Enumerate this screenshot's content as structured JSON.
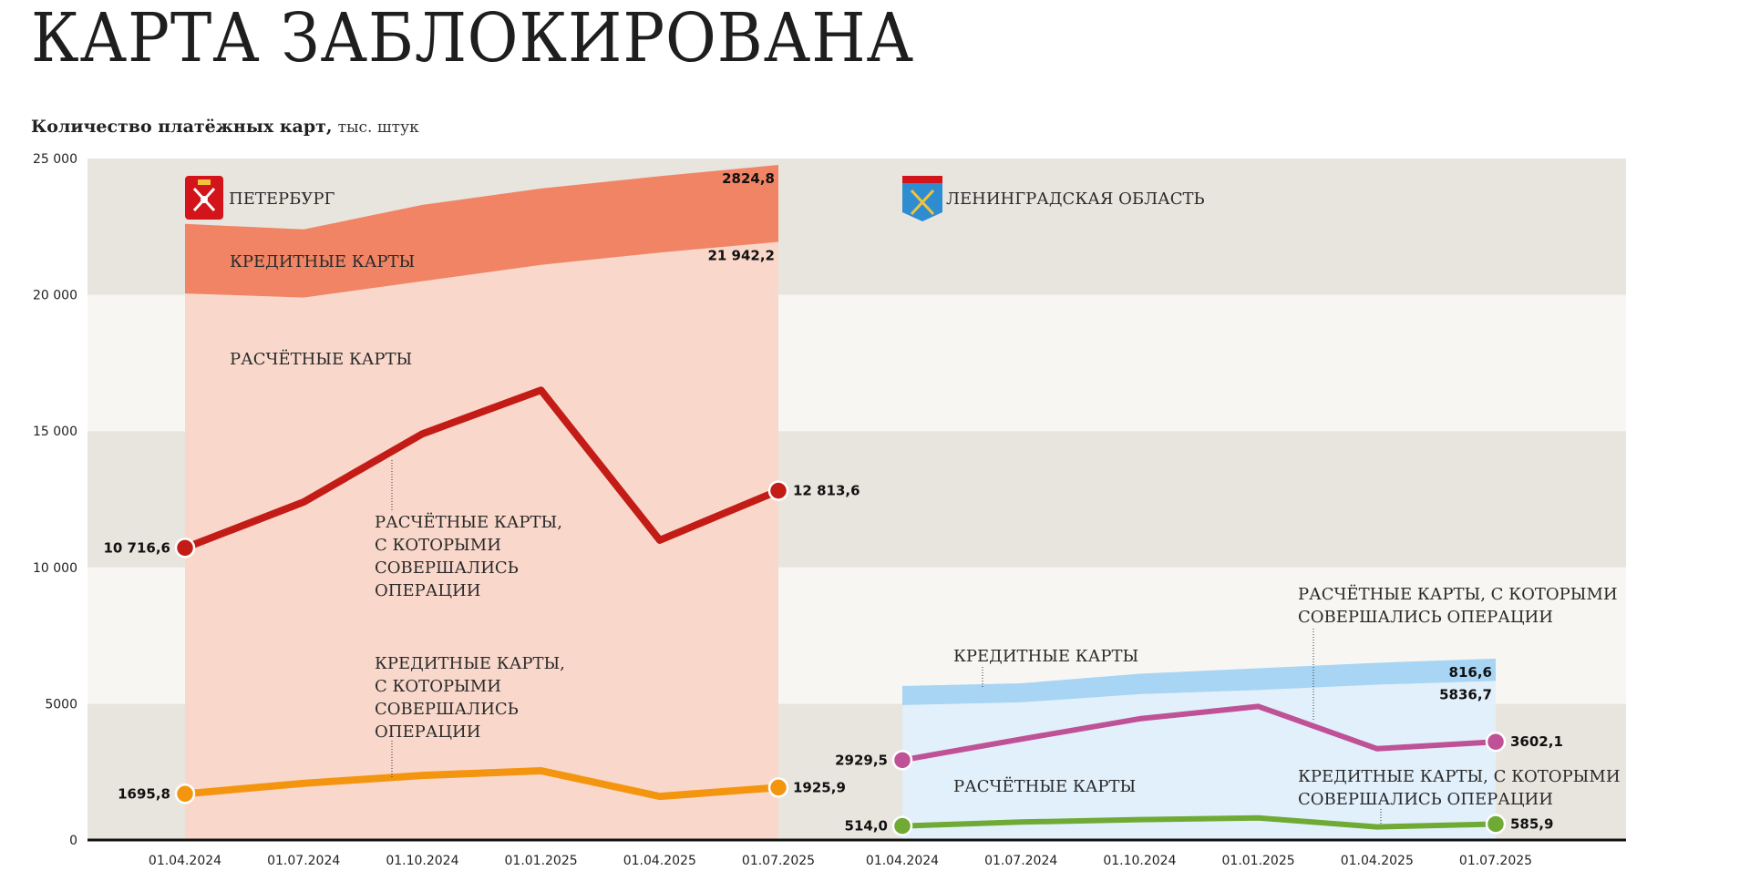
{
  "title": "КАРТА ЗАБЛОКИРОВАНА",
  "subtitle": {
    "bold": "Количество платёжных карт,",
    "unit": "тыс. штук"
  },
  "colors": {
    "band_dark": "#e8e5de",
    "band_light": "#f7f6f3",
    "spb_credit_area": "#f08465",
    "spb_settlement_area": "#f9d8cb",
    "spb_active_settlement_line": "#c31c17",
    "spb_active_credit_line": "#f4950f",
    "lo_credit_area": "#a7d5f3",
    "lo_settlement_area": "#e2f0fb",
    "lo_active_settlement_line": "#bf5197",
    "lo_active_credit_line": "#6eaa34",
    "coat_spb": "#d3141b",
    "coat_lo": "#2e8dd0"
  },
  "chart_data": {
    "type": "area",
    "ylabel": "",
    "ylim": [
      0,
      25000
    ],
    "yticks": [
      0,
      5000,
      10000,
      15000,
      20000,
      25000
    ],
    "ytick_labels": [
      "0",
      "5000",
      "10 000",
      "15 000",
      "20 000",
      "25 000"
    ],
    "grid": "alternating horizontal bands",
    "panels": [
      {
        "region": "ПЕТЕРБУРГ",
        "coat_icon": "spb-coat-of-arms-icon",
        "x": [
          "01.04.2024",
          "01.07.2024",
          "01.10.2024",
          "01.01.2025",
          "01.04.2025",
          "01.07.2025"
        ],
        "series": [
          {
            "key": "settlement",
            "name": "РАСЧЁТНЫЕ КАРТЫ",
            "kind": "area",
            "values": [
              20050,
              19900,
              20500,
              21100,
              21550,
              21942.2
            ],
            "end_label": "21 942,2"
          },
          {
            "key": "credit",
            "name": "КРЕДИТНЫЕ КАРТЫ",
            "kind": "stacked-area",
            "values": [
              2550,
              2500,
              2800,
              2800,
              2800,
              2824.8
            ],
            "end_label": "2824,8"
          },
          {
            "key": "active_settlement",
            "name": "РАСЧЁТНЫЕ КАРТЫ, С КОТОРЫМИ СОВЕРШАЛИСЬ ОПЕРАЦИИ",
            "kind": "line",
            "values": [
              10716.6,
              12400,
              14900,
              16500,
              11000,
              12813.6
            ],
            "start_label": "10 716,6",
            "end_label": "12 813,6"
          },
          {
            "key": "active_credit",
            "name": "КРЕДИТНЫЕ КАРТЫ, С КОТОРЫМИ СОВЕРШАЛИСЬ ОПЕРАЦИИ",
            "kind": "line",
            "values": [
              1695.8,
              2080,
              2370,
              2540,
              1600,
              1925.9
            ],
            "start_label": "1695,8",
            "end_label": "1925,9"
          }
        ],
        "labels": {
          "credit": "КРЕДИТНЫЕ КАРТЫ",
          "settlement": "РАСЧЁТНЫЕ КАРТЫ",
          "active_settlement": [
            "РАСЧЁТНЫЕ КАРТЫ,",
            "С КОТОРЫМИ",
            "СОВЕРШАЛИСЬ",
            "ОПЕРАЦИИ"
          ],
          "active_credit": [
            "КРЕДИТНЫЕ КАРТЫ,",
            "С КОТОРЫМИ",
            "СОВЕРШАЛИСЬ",
            "ОПЕРАЦИИ"
          ]
        }
      },
      {
        "region": "ЛЕНИНГРАДСКАЯ ОБЛАСТЬ",
        "coat_icon": "leningrad-oblast-coat-of-arms-icon",
        "x": [
          "01.04.2024",
          "01.07.2024",
          "01.10.2024",
          "01.01.2025",
          "01.04.2025",
          "01.07.2025"
        ],
        "series": [
          {
            "key": "settlement",
            "name": "РАСЧЁТНЫЕ КАРТЫ",
            "kind": "area",
            "values": [
              4950,
              5050,
              5350,
              5500,
              5700,
              5836.7
            ],
            "end_label": "5836,7"
          },
          {
            "key": "credit",
            "name": "КРЕДИТНЫЕ КАРТЫ",
            "kind": "stacked-area",
            "values": [
              700,
              700,
              750,
              800,
              800,
              816.6
            ],
            "end_label": "816,6"
          },
          {
            "key": "active_settlement",
            "name": "РАСЧЁТНЫЕ КАРТЫ, С КОТОРЫМИ СОВЕРШАЛИСЬ ОПЕРАЦИИ",
            "kind": "line",
            "values": [
              2929.5,
              3700,
              4450,
              4900,
              3350,
              3602.1
            ],
            "start_label": "2929,5",
            "end_label": "3602,1"
          },
          {
            "key": "active_credit",
            "name": "КРЕДИТНЫЕ КАРТЫ, С КОТОРЫМИ СОВЕРШАЛИСЬ ОПЕРАЦИИ",
            "kind": "line",
            "values": [
              514.0,
              660,
              750,
              810,
              480,
              585.9
            ],
            "start_label": "514,0",
            "end_label": "585,9"
          }
        ],
        "labels": {
          "credit": "КРЕДИТНЫЕ КАРТЫ",
          "settlement": "РАСЧЁТНЫЕ КАРТЫ",
          "active_settlement": [
            "РАСЧЁТНЫЕ КАРТЫ, С КОТОРЫМИ",
            "СОВЕРШАЛИСЬ ОПЕРАЦИИ"
          ],
          "active_credit": [
            "КРЕДИТНЫЕ КАРТЫ, С КОТОРЫМИ",
            "СОВЕРШАЛИСЬ ОПЕРАЦИИ"
          ]
        }
      }
    ]
  }
}
